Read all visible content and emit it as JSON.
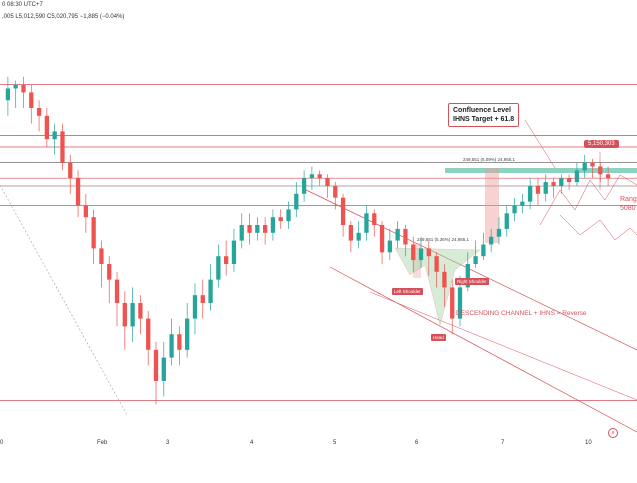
{
  "header": {
    "line1": "0 08:30 UTC+7",
    "line2": ",005  L5,012,590  C5,020,795  −1,885 (−0.04%)"
  },
  "annotations": {
    "confluence_title": "Confluence Level",
    "confluence_sub": "IHNS Target + 61.8",
    "price_tag": "5,150,303",
    "range_label_1": "Rang",
    "range_label_2": "5080",
    "measure_top": "249,551 (5.09%) 24,955,1",
    "measure_mid": "249,551 (5.36%) 24,955,1",
    "left_shoulder": "Left Shoulder",
    "right_shoulder": "Right Shoulder",
    "head": "Head",
    "channel_text": "DESCENDING CHANNEL + IHNS = Reverse"
  },
  "x_axis": {
    "labels": [
      "0",
      "Feb",
      "3",
      "4",
      "5",
      "6",
      "7",
      "10"
    ]
  },
  "colors": {
    "up": "#26a69a",
    "down": "#ef5350",
    "accent": "#d6505a",
    "zone": "#7fcdbb"
  },
  "chart_data": {
    "type": "candlestick",
    "x_labels": [
      "0",
      "Feb",
      "3",
      "4",
      "5",
      "6",
      "7",
      "10"
    ],
    "series": [
      {
        "values": [
          [
            0.82,
            0.85,
            0.88,
            0.78
          ],
          [
            0.85,
            0.86,
            0.87,
            0.8
          ],
          [
            0.86,
            0.84,
            0.88,
            0.8
          ],
          [
            0.84,
            0.8,
            0.86,
            0.76
          ],
          [
            0.8,
            0.78,
            0.82,
            0.74
          ],
          [
            0.78,
            0.72,
            0.8,
            0.7
          ],
          [
            0.72,
            0.74,
            0.76,
            0.68
          ],
          [
            0.74,
            0.66,
            0.76,
            0.64
          ],
          [
            0.66,
            0.62,
            0.68,
            0.58
          ],
          [
            0.62,
            0.55,
            0.64,
            0.52
          ],
          [
            0.55,
            0.52,
            0.58,
            0.48
          ],
          [
            0.52,
            0.44,
            0.54,
            0.4
          ],
          [
            0.44,
            0.4,
            0.46,
            0.34
          ],
          [
            0.4,
            0.36,
            0.42,
            0.3
          ],
          [
            0.36,
            0.3,
            0.38,
            0.24
          ],
          [
            0.3,
            0.24,
            0.33,
            0.18
          ],
          [
            0.24,
            0.3,
            0.34,
            0.2
          ],
          [
            0.3,
            0.26,
            0.32,
            0.22
          ],
          [
            0.26,
            0.18,
            0.28,
            0.14
          ],
          [
            0.18,
            0.1,
            0.2,
            0.04
          ],
          [
            0.1,
            0.16,
            0.2,
            0.06
          ],
          [
            0.16,
            0.22,
            0.26,
            0.14
          ],
          [
            0.22,
            0.18,
            0.24,
            0.14
          ],
          [
            0.18,
            0.26,
            0.3,
            0.16
          ],
          [
            0.26,
            0.32,
            0.35,
            0.22
          ],
          [
            0.32,
            0.3,
            0.36,
            0.26
          ],
          [
            0.3,
            0.36,
            0.4,
            0.28
          ],
          [
            0.36,
            0.42,
            0.45,
            0.34
          ],
          [
            0.42,
            0.4,
            0.46,
            0.37
          ],
          [
            0.4,
            0.46,
            0.49,
            0.38
          ],
          [
            0.46,
            0.5,
            0.53,
            0.44
          ],
          [
            0.5,
            0.48,
            0.53,
            0.45
          ],
          [
            0.48,
            0.5,
            0.52,
            0.46
          ],
          [
            0.5,
            0.48,
            0.52,
            0.45
          ],
          [
            0.48,
            0.52,
            0.54,
            0.46
          ],
          [
            0.52,
            0.51,
            0.54,
            0.49
          ],
          [
            0.51,
            0.54,
            0.56,
            0.49
          ],
          [
            0.54,
            0.58,
            0.61,
            0.52
          ],
          [
            0.58,
            0.62,
            0.64,
            0.56
          ],
          [
            0.62,
            0.63,
            0.65,
            0.59
          ],
          [
            0.63,
            0.62,
            0.64,
            0.6
          ],
          [
            0.62,
            0.6,
            0.63,
            0.57
          ],
          [
            0.6,
            0.57,
            0.61,
            0.54
          ],
          [
            0.57,
            0.5,
            0.58,
            0.47
          ],
          [
            0.5,
            0.46,
            0.51,
            0.43
          ],
          [
            0.46,
            0.48,
            0.51,
            0.44
          ],
          [
            0.48,
            0.53,
            0.55,
            0.46
          ],
          [
            0.53,
            0.5,
            0.54,
            0.47
          ],
          [
            0.5,
            0.43,
            0.51,
            0.4
          ],
          [
            0.43,
            0.46,
            0.49,
            0.41
          ],
          [
            0.46,
            0.49,
            0.51,
            0.44
          ],
          [
            0.49,
            0.45,
            0.5,
            0.42
          ],
          [
            0.45,
            0.41,
            0.47,
            0.38
          ],
          [
            0.41,
            0.44,
            0.47,
            0.39
          ],
          [
            0.44,
            0.42,
            0.46,
            0.37
          ],
          [
            0.42,
            0.38,
            0.43,
            0.34
          ],
          [
            0.38,
            0.34,
            0.4,
            0.29
          ],
          [
            0.34,
            0.26,
            0.36,
            0.22
          ],
          [
            0.26,
            0.34,
            0.37,
            0.24
          ],
          [
            0.34,
            0.4,
            0.43,
            0.33
          ],
          [
            0.4,
            0.42,
            0.46,
            0.39
          ],
          [
            0.42,
            0.45,
            0.48,
            0.41
          ],
          [
            0.45,
            0.47,
            0.49,
            0.43
          ],
          [
            0.47,
            0.49,
            0.52,
            0.45
          ],
          [
            0.49,
            0.53,
            0.55,
            0.47
          ],
          [
            0.53,
            0.55,
            0.57,
            0.51
          ],
          [
            0.55,
            0.56,
            0.58,
            0.53
          ],
          [
            0.56,
            0.6,
            0.62,
            0.54
          ],
          [
            0.6,
            0.58,
            0.62,
            0.55
          ],
          [
            0.58,
            0.61,
            0.63,
            0.56
          ],
          [
            0.61,
            0.6,
            0.62,
            0.57
          ],
          [
            0.6,
            0.62,
            0.63,
            0.58
          ],
          [
            0.62,
            0.61,
            0.63,
            0.59
          ],
          [
            0.61,
            0.64,
            0.66,
            0.6
          ],
          [
            0.64,
            0.66,
            0.68,
            0.62
          ],
          [
            0.66,
            0.65,
            0.67,
            0.62
          ],
          [
            0.65,
            0.63,
            0.66,
            0.61
          ],
          [
            0.63,
            0.62,
            0.65,
            0.6
          ]
        ]
      }
    ],
    "horizontal_levels": [
      0.86,
      0.73,
      0.7,
      0.66,
      0.62,
      0.6,
      0.55,
      0.05
    ],
    "grid": false,
    "legend": "none"
  }
}
